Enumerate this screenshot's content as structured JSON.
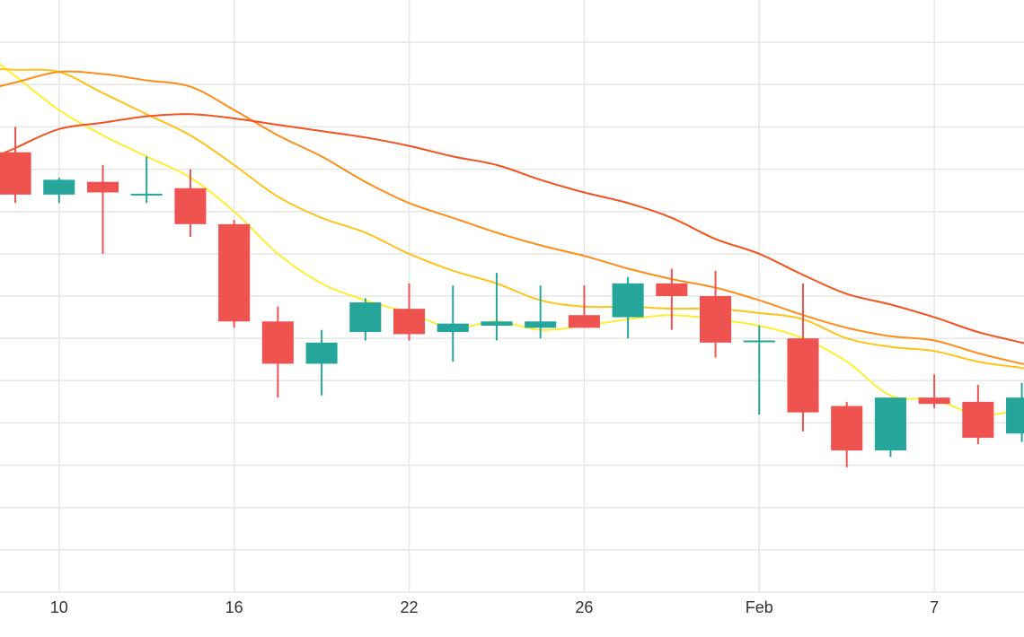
{
  "chart_data": {
    "type": "candlestick",
    "grid": true,
    "colors": {
      "up": "#26a69a",
      "down": "#ef5350",
      "grid": "#e6e6e6",
      "ma_5": "#ffee33",
      "ma_10": "#ffc21a",
      "ma_20": "#ff8c1a",
      "ma_30": "#f4511e"
    },
    "x_ticks": [
      {
        "label": "10",
        "index": 1
      },
      {
        "label": "16",
        "index": 5
      },
      {
        "label": "22",
        "index": 9
      },
      {
        "label": "26",
        "index": 13
      },
      {
        "label": "Feb",
        "index": 17
      },
      {
        "label": "7",
        "index": 21
      }
    ],
    "ylim": [
      0,
      14
    ],
    "y_gridlines": [
      1,
      2,
      3,
      4,
      5,
      6,
      7,
      8,
      9,
      10,
      11,
      12,
      13
    ],
    "x_range": [
      -0.35,
      23.05
    ],
    "candles": [
      {
        "open": 10.4,
        "high": 11.0,
        "low": 9.2,
        "close": 9.4
      },
      {
        "open": 9.4,
        "high": 9.8,
        "low": 9.2,
        "close": 9.75
      },
      {
        "open": 9.7,
        "high": 10.1,
        "low": 8.0,
        "close": 9.45
      },
      {
        "open": 9.42,
        "high": 10.3,
        "low": 9.2,
        "close": 9.42
      },
      {
        "open": 9.55,
        "high": 10.0,
        "low": 8.4,
        "close": 8.7
      },
      {
        "open": 8.7,
        "high": 8.8,
        "low": 6.25,
        "close": 6.4
      },
      {
        "open": 6.4,
        "high": 6.75,
        "low": 4.6,
        "close": 5.4
      },
      {
        "open": 5.4,
        "high": 6.2,
        "low": 4.65,
        "close": 5.9
      },
      {
        "open": 6.15,
        "high": 6.95,
        "low": 5.95,
        "close": 6.85
      },
      {
        "open": 6.7,
        "high": 7.3,
        "low": 5.95,
        "close": 6.1
      },
      {
        "open": 6.15,
        "high": 7.25,
        "low": 5.45,
        "close": 6.35
      },
      {
        "open": 6.3,
        "high": 7.55,
        "low": 5.95,
        "close": 6.4
      },
      {
        "open": 6.25,
        "high": 7.25,
        "low": 6.0,
        "close": 6.4
      },
      {
        "open": 6.55,
        "high": 7.25,
        "low": 6.25,
        "close": 6.25
      },
      {
        "open": 6.5,
        "high": 7.45,
        "low": 6.0,
        "close": 7.3
      },
      {
        "open": 7.3,
        "high": 7.65,
        "low": 6.2,
        "close": 7.0
      },
      {
        "open": 7.0,
        "high": 7.6,
        "low": 5.55,
        "close": 5.9
      },
      {
        "open": 5.95,
        "high": 6.3,
        "low": 4.2,
        "close": 5.95
      },
      {
        "open": 6.0,
        "high": 7.3,
        "low": 3.8,
        "close": 4.25
      },
      {
        "open": 4.4,
        "high": 4.5,
        "low": 2.95,
        "close": 3.35
      },
      {
        "open": 3.35,
        "high": 4.5,
        "low": 3.2,
        "close": 4.6
      },
      {
        "open": 4.6,
        "high": 5.15,
        "low": 4.35,
        "close": 4.45
      },
      {
        "open": 4.5,
        "high": 4.9,
        "low": 3.5,
        "close": 3.65
      },
      {
        "open": 3.75,
        "high": 4.95,
        "low": 3.55,
        "close": 4.6
      }
    ],
    "moving_averages": [
      {
        "key": "ma_5",
        "values": [
          12.2,
          11.4,
          10.8,
          10.3,
          9.8,
          9.0,
          8.0,
          7.3,
          6.9,
          6.6,
          6.25,
          6.4,
          6.2,
          6.3,
          6.45,
          6.55,
          6.45,
          6.3,
          6.0,
          5.45,
          4.65,
          4.55,
          4.2,
          4.3
        ]
      },
      {
        "key": "ma_10",
        "values": [
          12.35,
          12.3,
          11.8,
          11.3,
          10.8,
          10.1,
          9.35,
          8.85,
          8.5,
          8.0,
          7.6,
          7.3,
          6.9,
          6.75,
          6.75,
          6.7,
          6.7,
          6.6,
          6.45,
          6.0,
          5.8,
          5.7,
          5.45,
          5.3
        ]
      },
      {
        "key": "ma_20",
        "values": [
          12.05,
          12.3,
          12.25,
          12.1,
          11.95,
          11.4,
          10.8,
          10.3,
          9.7,
          9.2,
          8.85,
          8.5,
          8.2,
          7.95,
          7.65,
          7.4,
          7.2,
          6.9,
          6.55,
          6.25,
          6.05,
          5.95,
          5.65,
          5.4
        ]
      },
      {
        "key": "ma_30",
        "values": [
          10.5,
          10.95,
          11.1,
          11.25,
          11.3,
          11.2,
          11.05,
          10.9,
          10.75,
          10.55,
          10.3,
          10.1,
          9.75,
          9.45,
          9.2,
          8.85,
          8.35,
          8.0,
          7.5,
          7.05,
          6.8,
          6.5,
          6.15,
          5.9
        ]
      }
    ]
  }
}
